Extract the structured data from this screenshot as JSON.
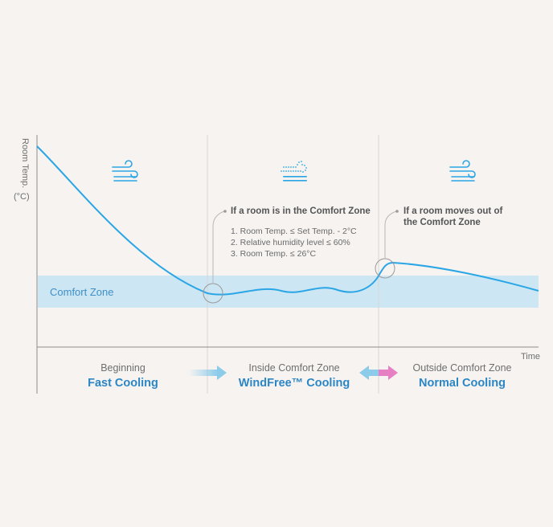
{
  "axis": {
    "y_label": "Room Temp.",
    "y_unit": "(°C)",
    "x_label": "Time"
  },
  "comfort_zone": {
    "label": "Comfort Zone"
  },
  "callouts": {
    "inside": {
      "title": "If a room is in the Comfort Zone",
      "conditions": [
        "1. Room Temp. ≤ Set Temp. - 2°C",
        "2. Relative humidity level ≤ 60%",
        "3. Room Temp. ≤ 26°C"
      ]
    },
    "outside": {
      "title_line1": "If a room moves out of",
      "title_line2": "the Comfort Zone"
    }
  },
  "phases": [
    {
      "name": "Beginning",
      "mode": "Fast Cooling",
      "icon": "wind-strong-icon"
    },
    {
      "name": "Inside Comfort Zone",
      "mode": "WindFree™ Cooling",
      "icon": "windfree-icon"
    },
    {
      "name": "Outside Comfort Zone",
      "mode": "Normal Cooling",
      "icon": "wind-normal-icon"
    }
  ],
  "colors": {
    "curve": "#2aa6e6",
    "comfort_band": "#cde6f3",
    "comfort_text": "#3d8fc8",
    "mode_text": "#2b86c5",
    "arrow_blue": "#8ccbe9",
    "arrow_pink": "#e680c2"
  }
}
